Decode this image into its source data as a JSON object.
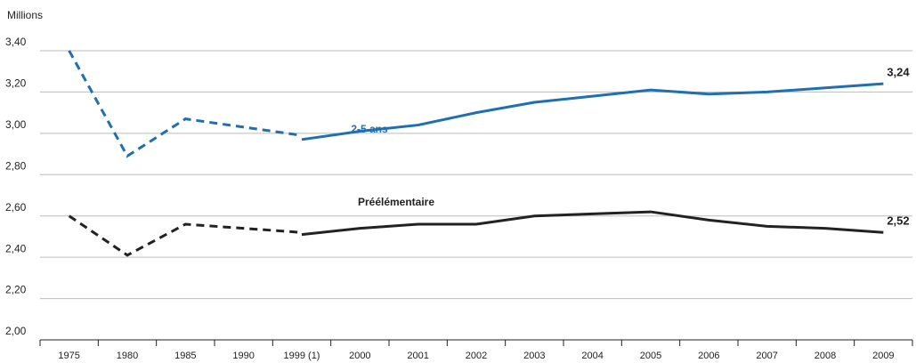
{
  "chart_data": {
    "type": "line",
    "y_axis_label": "Millions",
    "categories": [
      "1975",
      "1980",
      "1985",
      "1990",
      "1999 (1)",
      "2000",
      "2001",
      "2002",
      "2003",
      "2004",
      "2005",
      "2006",
      "2007",
      "2008",
      "2009"
    ],
    "series": [
      {
        "name": "2-5 ans",
        "color": "#1f6fb2",
        "style": "solid",
        "values": [
          null,
          null,
          null,
          null,
          2.97,
          3.01,
          3.04,
          3.1,
          3.15,
          3.18,
          3.21,
          3.19,
          3.2,
          3.22,
          3.24
        ],
        "value_labels": [
          null,
          null,
          null,
          null,
          null,
          null,
          null,
          null,
          null,
          null,
          null,
          null,
          null,
          null,
          "3,24"
        ]
      },
      {
        "color": "#1f6fb2",
        "style": "dashed",
        "values": [
          3.4,
          2.89,
          3.07,
          3.03,
          2.99,
          null,
          null,
          null,
          null,
          null,
          null,
          null,
          null,
          null,
          null
        ]
      },
      {
        "name": "Préélémentaire",
        "color": "#222222",
        "style": "solid",
        "values": [
          null,
          null,
          null,
          null,
          2.51,
          2.54,
          2.56,
          2.56,
          2.6,
          2.61,
          2.62,
          2.58,
          2.55,
          2.54,
          2.52
        ],
        "value_labels": [
          null,
          null,
          null,
          null,
          null,
          null,
          null,
          null,
          null,
          null,
          null,
          null,
          null,
          null,
          "2,52"
        ]
      },
      {
        "color": "#222222",
        "style": "dashed",
        "values": [
          2.6,
          2.41,
          2.56,
          2.54,
          2.52,
          null,
          null,
          null,
          null,
          null,
          null,
          null,
          null,
          null,
          null
        ]
      }
    ],
    "ylim": [
      2.0,
      3.4
    ],
    "yticks": [
      {
        "value": 2.0,
        "label": "2,00"
      },
      {
        "value": 2.2,
        "label": "2,20"
      },
      {
        "value": 2.4,
        "label": "2,40"
      },
      {
        "value": 2.6,
        "label": "2,60"
      },
      {
        "value": 2.8,
        "label": "2,80"
      },
      {
        "value": 3.0,
        "label": "3,00"
      },
      {
        "value": 3.2,
        "label": "3,20"
      },
      {
        "value": 3.4,
        "label": "3,40"
      }
    ],
    "grid": true
  }
}
